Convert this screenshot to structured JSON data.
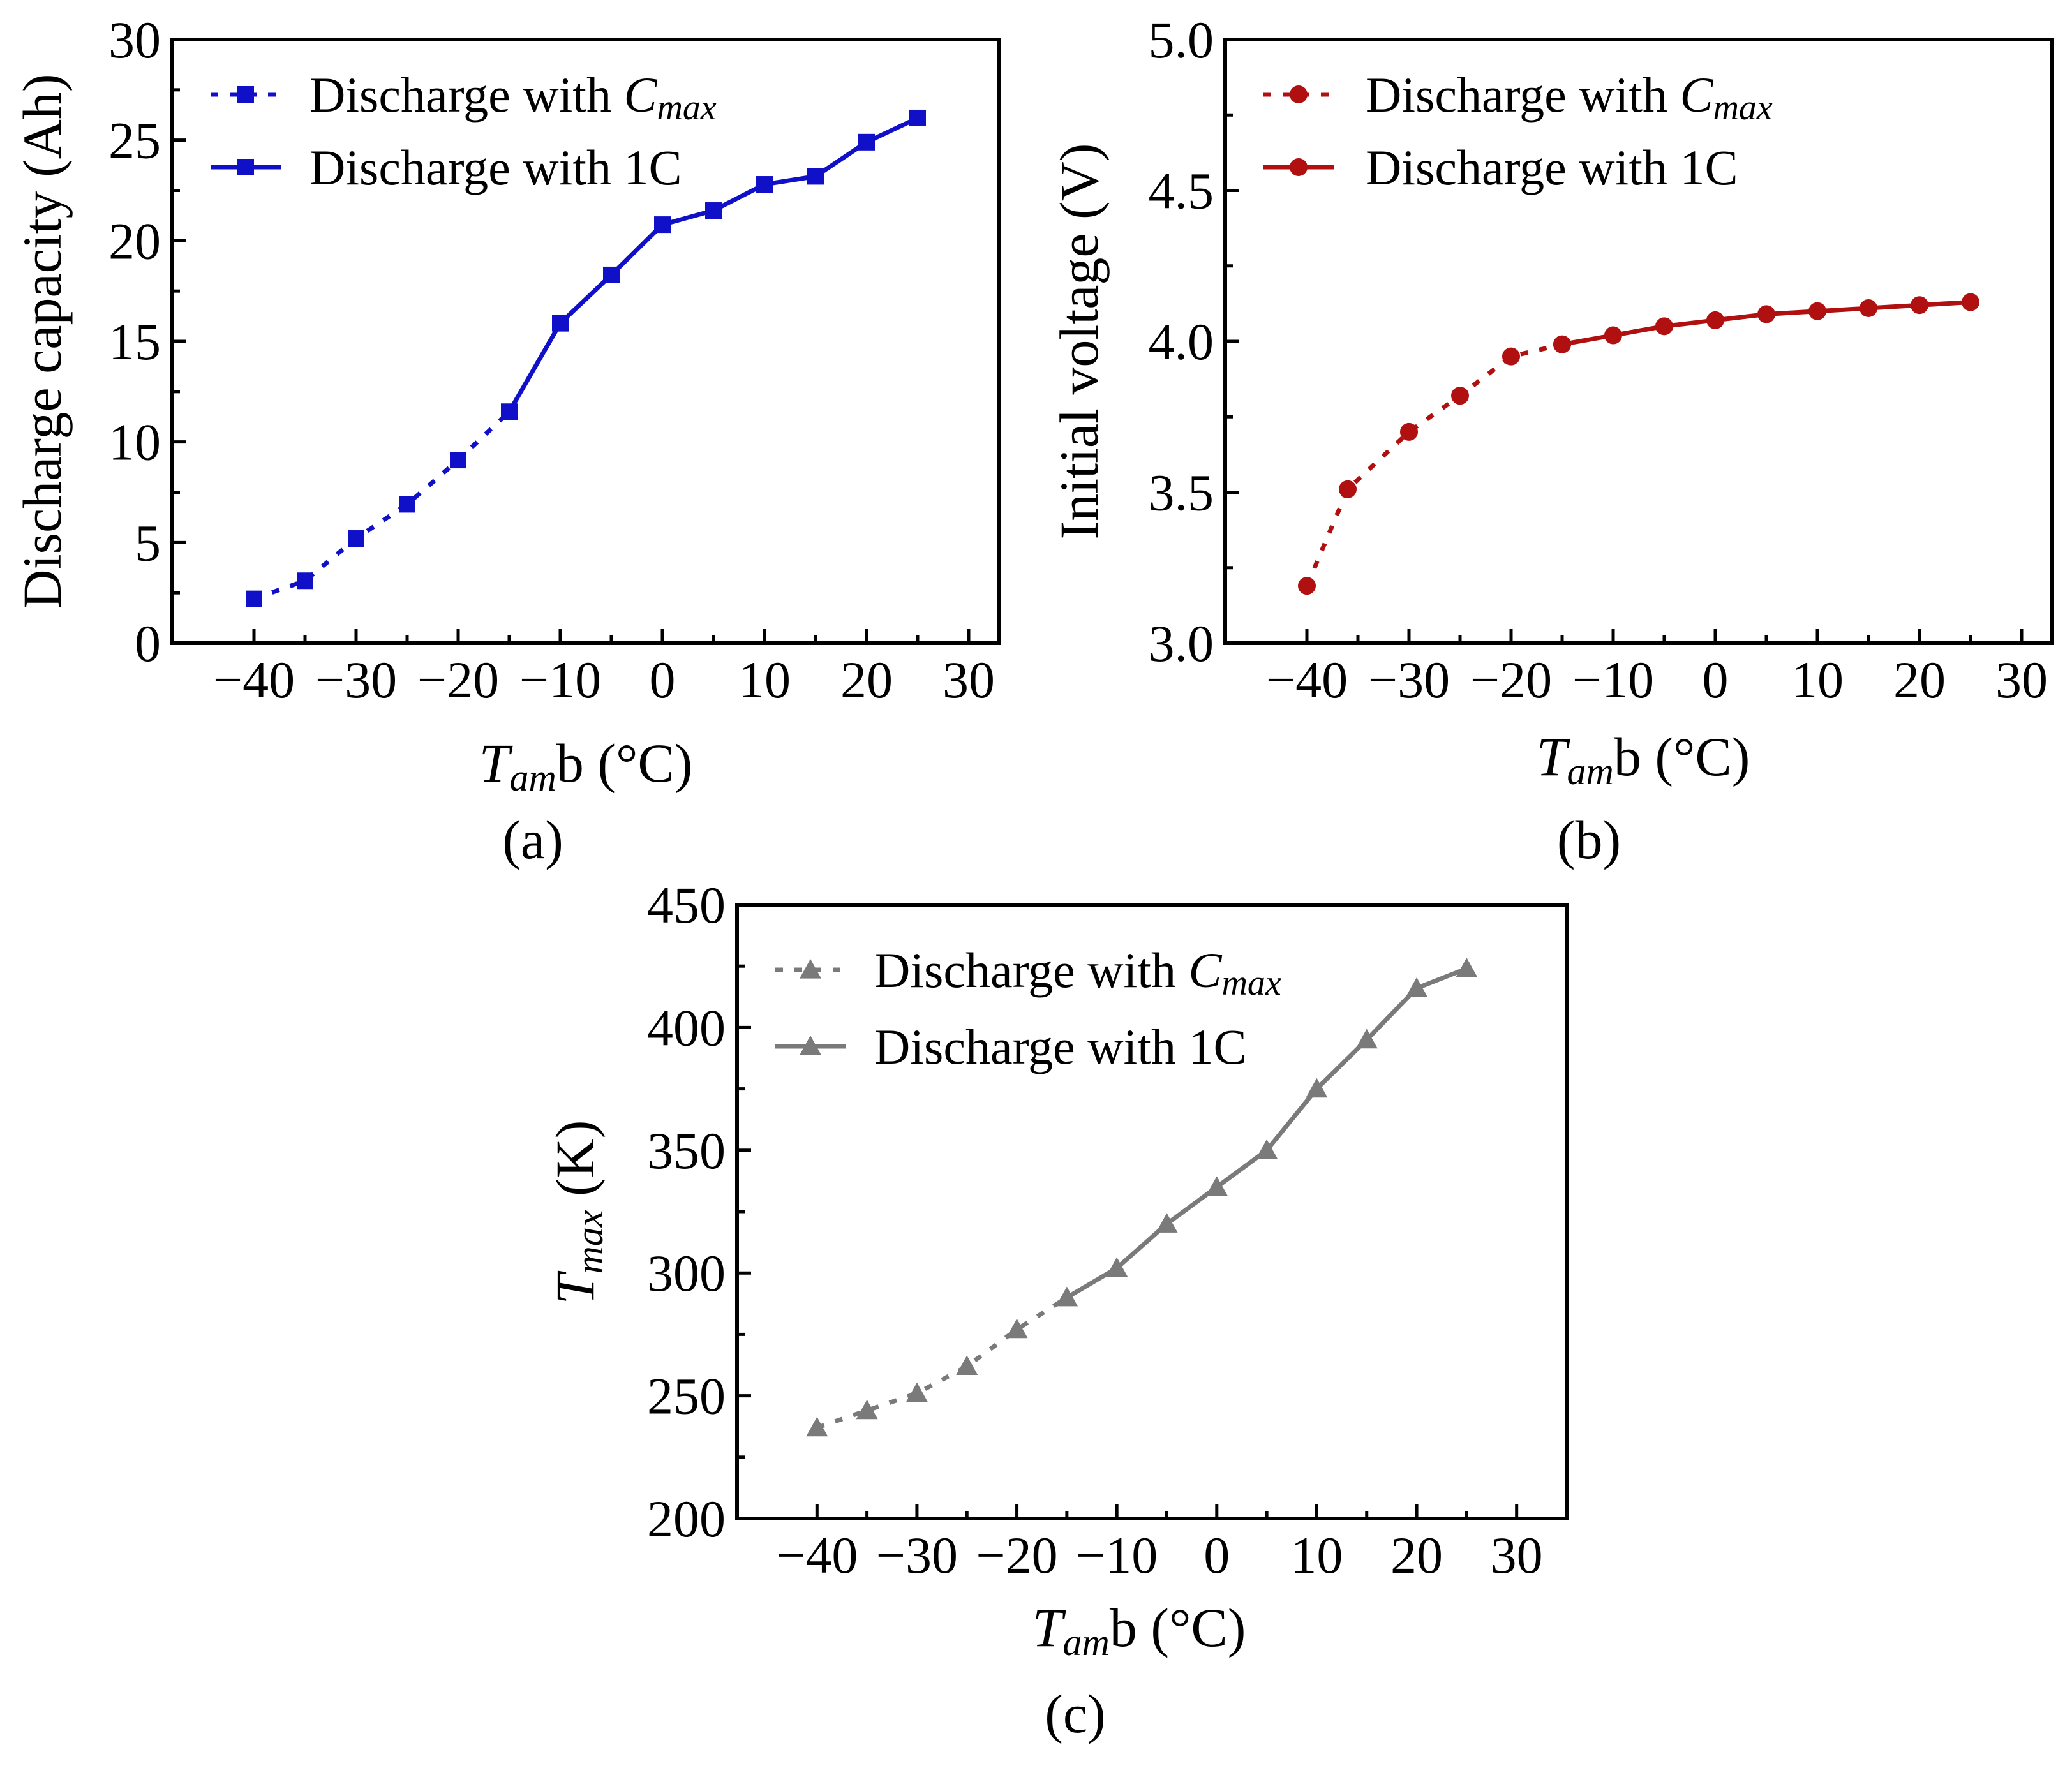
{
  "chart_data": [
    {
      "id": "a",
      "type": "line",
      "panel_label": "(a)",
      "xlabel_main": "T",
      "xlabel_sub": "am",
      "xlabel_rest": "b (°C)",
      "ylabel": "Discharge capacity (Ah)",
      "xlim": [
        -48,
        33
      ],
      "ylim": [
        0,
        30
      ],
      "xticks": [
        "−40",
        "−30",
        "−20",
        "−10",
        "0",
        "10",
        "20",
        "30"
      ],
      "xtick_values": [
        -40,
        -30,
        -20,
        -10,
        0,
        10,
        20,
        30
      ],
      "yticks": [
        "0",
        "5",
        "10",
        "15",
        "20",
        "25",
        "30"
      ],
      "ytick_values": [
        0,
        5,
        10,
        15,
        20,
        25,
        30
      ],
      "color": "#1010c8",
      "marker": "square",
      "legend": [
        {
          "text": "Discharge with ",
          "italic_sub_main": "C",
          "italic_sub": "max",
          "style": "dashed"
        },
        {
          "text": "Discharge with 1C",
          "style": "solid"
        }
      ],
      "series": [
        {
          "name": "Discharge with Cmax",
          "style": "dashed",
          "x": [
            -40,
            -35,
            -30,
            -25,
            -20,
            -15
          ],
          "values": [
            2.2,
            3.1,
            5.2,
            6.9,
            9.1,
            11.5
          ]
        },
        {
          "name": "Discharge with 1C",
          "style": "solid",
          "x": [
            -15,
            -10,
            -5,
            0,
            5,
            10,
            15,
            20,
            25
          ],
          "values": [
            11.5,
            15.9,
            18.3,
            20.8,
            21.5,
            22.8,
            23.2,
            24.9,
            26.1
          ]
        }
      ]
    },
    {
      "id": "b",
      "type": "line",
      "panel_label": "(b)",
      "xlabel_main": "T",
      "xlabel_sub": "am",
      "xlabel_rest": "b (°C)",
      "ylabel": "Initial voltage (V)",
      "xlim": [
        -48,
        33
      ],
      "ylim": [
        3.0,
        5.0
      ],
      "xticks": [
        "−40",
        "−30",
        "−20",
        "−10",
        "0",
        "10",
        "20",
        "30"
      ],
      "xtick_values": [
        -40,
        -30,
        -20,
        -10,
        0,
        10,
        20,
        30
      ],
      "yticks": [
        "3.0",
        "3.5",
        "4.0",
        "4.5",
        "5.0"
      ],
      "ytick_values": [
        3.0,
        3.5,
        4.0,
        4.5,
        5.0
      ],
      "color": "#b01010",
      "marker": "circle",
      "legend": [
        {
          "text": "Discharge with ",
          "italic_sub_main": "C",
          "italic_sub": "max",
          "style": "dashed"
        },
        {
          "text": "Discharge with 1C",
          "style": "solid"
        }
      ],
      "series": [
        {
          "name": "Discharge with Cmax",
          "style": "dashed",
          "x": [
            -40,
            -36,
            -30,
            -25,
            -20,
            -15
          ],
          "values": [
            3.19,
            3.51,
            3.7,
            3.82,
            3.95,
            3.99
          ]
        },
        {
          "name": "Discharge with 1C",
          "style": "solid",
          "x": [
            -15,
            -10,
            -5,
            0,
            5,
            10,
            15,
            20,
            25
          ],
          "values": [
            3.99,
            4.02,
            4.05,
            4.07,
            4.09,
            4.1,
            4.11,
            4.12,
            4.13
          ]
        }
      ]
    },
    {
      "id": "c",
      "type": "line",
      "panel_label": "(c)",
      "xlabel_main": "T",
      "xlabel_sub": "am",
      "xlabel_rest": "b (°C)",
      "ylabel_main": "T",
      "ylabel_sub": "max",
      "ylabel_rest": " (K)",
      "xlim": [
        -48,
        35
      ],
      "ylim": [
        200,
        450
      ],
      "xticks": [
        "−40",
        "−30",
        "−20",
        "−10",
        "0",
        "10",
        "20",
        "30"
      ],
      "xtick_values": [
        -40,
        -30,
        -20,
        -10,
        0,
        10,
        20,
        30
      ],
      "yticks": [
        "200",
        "250",
        "300",
        "350",
        "400",
        "450"
      ],
      "ytick_values": [
        200,
        250,
        300,
        350,
        400,
        450
      ],
      "color": "#7a7a7a",
      "marker": "triangle",
      "legend": [
        {
          "text": "Discharge with ",
          "italic_sub_main": "C",
          "italic_sub": "max",
          "style": "dashed"
        },
        {
          "text": "Discharge with 1C",
          "style": "solid"
        }
      ],
      "series": [
        {
          "name": "Discharge with Cmax",
          "style": "dashed",
          "x": [
            -40,
            -35,
            -30,
            -25,
            -20,
            -15
          ],
          "values": [
            237,
            244,
            251,
            262,
            277,
            290
          ]
        },
        {
          "name": "Discharge with 1C",
          "style": "solid",
          "x": [
            -15,
            -10,
            -5,
            0,
            5,
            10,
            15,
            20,
            25
          ],
          "values": [
            290,
            302,
            320,
            335,
            350,
            375,
            395,
            416,
            424
          ]
        }
      ]
    }
  ]
}
